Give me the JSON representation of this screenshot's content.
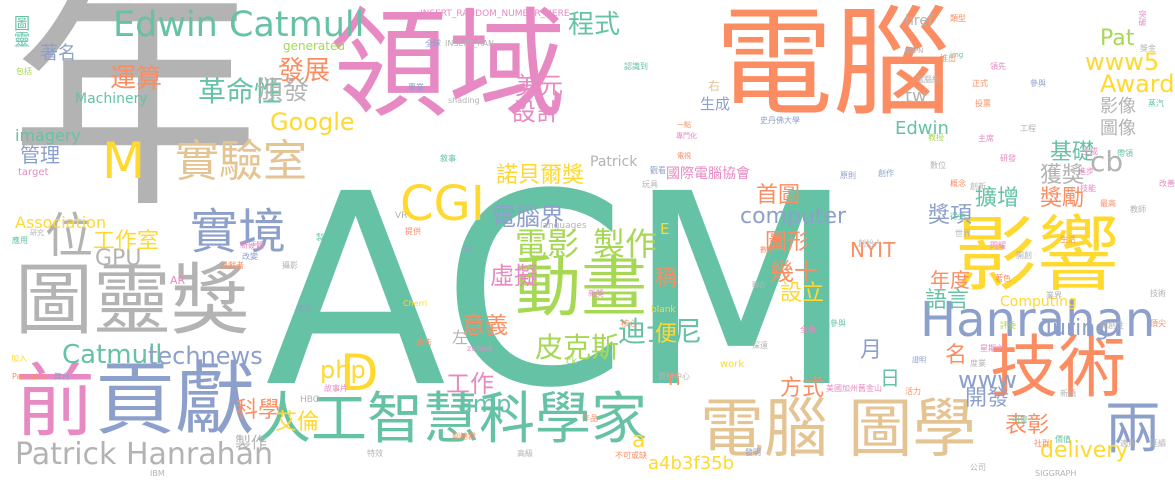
{
  "palette": {
    "green": "#66c2a5",
    "orange": "#fc8d62",
    "blue": "#8da0cb",
    "pink": "#e78ac3",
    "lime": "#a6d854",
    "yellow": "#ffd92f",
    "tan": "#e5c494",
    "gray": "#b3b3b3"
  },
  "words": [
    {
      "text": "年",
      "color": "gray"
    },
    {
      "text": "ACM",
      "color": "green"
    },
    {
      "text": "領域",
      "color": "pink"
    },
    {
      "text": "電腦",
      "color": "orange"
    },
    {
      "text": "圖靈獎",
      "color": "gray"
    },
    {
      "text": "影響",
      "color": "yellow"
    },
    {
      "text": "人工智慧科學家",
      "color": "green"
    },
    {
      "text": "電腦 圖學",
      "color": "tan"
    },
    {
      "text": "前",
      "color": "pink"
    },
    {
      "text": "貢獻",
      "color": "blue"
    },
    {
      "text": "技術",
      "color": "orange"
    },
    {
      "text": "Hanrahan",
      "color": "blue"
    },
    {
      "text": "動畫",
      "color": "lime"
    },
    {
      "text": "Edwin Catmull",
      "color": "green"
    },
    {
      "text": "實驗室",
      "color": "tan"
    },
    {
      "text": "實境",
      "color": "blue"
    },
    {
      "text": "位",
      "color": "gray"
    },
    {
      "text": "M",
      "color": "yellow"
    },
    {
      "text": "CGI",
      "color": "yellow"
    },
    {
      "text": "D",
      "color": "yellow"
    },
    {
      "text": "兩",
      "color": "blue"
    },
    {
      "text": "電影",
      "color": "lime"
    },
    {
      "text": "製作",
      "color": "lime"
    },
    {
      "text": "皮克斯",
      "color": "lime"
    },
    {
      "text": "迪士尼",
      "color": "green"
    },
    {
      "text": "Patrick Hanrahan",
      "color": "gray"
    },
    {
      "text": "革命性",
      "color": "green"
    },
    {
      "text": "頒發",
      "color": "gray"
    },
    {
      "text": "發展",
      "color": "orange"
    },
    {
      "text": "運算",
      "color": "orange"
    },
    {
      "text": "管理",
      "color": "blue"
    },
    {
      "text": "Google",
      "color": "yellow"
    },
    {
      "text": "程式",
      "color": "green"
    },
    {
      "text": "設計",
      "color": "pink"
    },
    {
      "text": "美元",
      "color": "pink"
    },
    {
      "text": "諾貝爾獎",
      "color": "yellow"
    },
    {
      "text": "電腦界",
      "color": "blue"
    },
    {
      "text": "虛擬",
      "color": "pink"
    },
    {
      "text": "意義",
      "color": "orange"
    },
    {
      "text": "Catmull",
      "color": "green"
    },
    {
      "text": "technews",
      "color": "blue"
    },
    {
      "text": "GPU",
      "color": "gray"
    },
    {
      "text": "工作室",
      "color": "yellow"
    },
    {
      "text": "php",
      "color": "yellow"
    },
    {
      "text": "工作",
      "color": "pink"
    },
    {
      "text": "amp",
      "color": "green"
    },
    {
      "text": "科學",
      "color": "orange"
    },
    {
      "text": "艾倫",
      "color": "yellow"
    },
    {
      "text": "製作",
      "color": "gray"
    },
    {
      "text": "設立",
      "color": "yellow"
    },
    {
      "text": "幾十",
      "color": "orange"
    },
    {
      "text": "稱",
      "color": "orange"
    },
    {
      "text": "便",
      "color": "yellow"
    },
    {
      "text": "左",
      "color": "gray"
    },
    {
      "text": "方式",
      "color": "orange"
    },
    {
      "text": "月",
      "color": "blue"
    },
    {
      "text": "日",
      "color": "green"
    },
    {
      "text": "名",
      "color": "orange"
    },
    {
      "text": "www",
      "color": "blue"
    },
    {
      "text": "開發",
      "color": "blue"
    },
    {
      "text": "表彰",
      "color": "orange"
    },
    {
      "text": "delivery",
      "color": "yellow"
    },
    {
      "text": "a4b3f35b",
      "color": "yellow"
    },
    {
      "text": "a",
      "color": "yellow"
    },
    {
      "text": "n",
      "color": "orange"
    },
    {
      "text": "NYIT",
      "color": "orange"
    },
    {
      "text": "首圖",
      "color": "orange"
    },
    {
      "text": "computer",
      "color": "blue"
    },
    {
      "text": "圖形",
      "color": "orange"
    },
    {
      "text": "年度",
      "color": "orange"
    },
    {
      "text": "語言",
      "color": "green"
    },
    {
      "text": "獎項",
      "color": "blue"
    },
    {
      "text": "擴增",
      "color": "green"
    },
    {
      "text": "獎勵",
      "color": "orange"
    },
    {
      "text": "獲獎",
      "color": "gray"
    },
    {
      "text": "基礎",
      "color": "green"
    },
    {
      "text": "cb",
      "color": "gray"
    },
    {
      "text": "圖像",
      "color": "gray"
    },
    {
      "text": "影像",
      "color": "gray"
    },
    {
      "text": "Award",
      "color": "yellow"
    },
    {
      "text": "www5",
      "color": "yellow"
    },
    {
      "text": "Pat",
      "color": "lime"
    },
    {
      "text": "Turing",
      "color": "blue"
    },
    {
      "text": "Computing",
      "color": "yellow"
    },
    {
      "text": "tw",
      "color": "gray"
    },
    {
      "text": "Edwin",
      "color": "green"
    },
    {
      "text": "href",
      "color": "gray"
    },
    {
      "text": "生成",
      "color": "blue"
    },
    {
      "text": "右",
      "color": "tan"
    },
    {
      "text": "國際電腦協會",
      "color": "pink"
    },
    {
      "text": "Patrick",
      "color": "gray"
    },
    {
      "text": "Association",
      "color": "yellow"
    },
    {
      "text": "imagery",
      "color": "green"
    },
    {
      "text": "Machinery",
      "color": "green"
    },
    {
      "text": "generated",
      "color": "lime"
    },
    {
      "text": "圖靈",
      "color": "green"
    },
    {
      "text": "著名",
      "color": "blue"
    },
    {
      "text": "E",
      "color": "yellow"
    },
    {
      "text": "INSERT_RANDOM_NUMBER_HERE",
      "color": "pink"
    },
    {
      "text": "INSERT_RAN",
      "color": "gray"
    },
    {
      "text": "shading",
      "color": "gray"
    },
    {
      "text": "languages",
      "color": "gray"
    },
    {
      "text": "target",
      "color": "pink"
    },
    {
      "text": "VR",
      "color": "gray"
    },
    {
      "text": "AR",
      "color": "pink"
    },
    {
      "text": "Ed",
      "color": "blue"
    },
    {
      "text": "ck",
      "color": "lime"
    },
    {
      "text": "work",
      "color": "yellow"
    },
    {
      "text": "blank",
      "color": "yellow"
    },
    {
      "text": "HBO",
      "color": "gray"
    },
    {
      "text": "IBM",
      "color": "gray"
    },
    {
      "text": "SIGGRAPH",
      "color": "gray"
    },
    {
      "text": "ESPN",
      "color": "gray"
    },
    {
      "text": "img",
      "color": "green"
    },
    {
      "text": "Pancake",
      "color": "orange"
    },
    {
      "text": "Cherri",
      "color": "yellow"
    },
    {
      "text": "zoned",
      "color": "pink"
    },
    {
      "text": "史丹佛大學",
      "color": "blue"
    },
    {
      "text": "美國加州舊金山",
      "color": "pink"
    },
    {
      "text": "資料中心",
      "color": "gray"
    },
    {
      "text": "全球",
      "color": "blue"
    },
    {
      "text": "專業",
      "color": "blue"
    },
    {
      "text": "認識到",
      "color": "green"
    },
    {
      "text": "一點",
      "color": "orange"
    },
    {
      "text": "專門化",
      "color": "pink"
    },
    {
      "text": "數位",
      "color": "gray"
    },
    {
      "text": "創新",
      "color": "gray"
    },
    {
      "text": "貢獻者",
      "color": "orange"
    },
    {
      "text": "新獎",
      "color": "pink"
    },
    {
      "text": "深遠",
      "color": "gray"
    },
    {
      "text": "特效",
      "color": "gray"
    },
    {
      "text": "不可或缺",
      "color": "orange"
    },
    {
      "text": "高級",
      "color": "gray"
    },
    {
      "text": "副總裁",
      "color": "orange"
    },
    {
      "text": "作品",
      "color": "orange"
    },
    {
      "text": "故事片",
      "color": "pink"
    },
    {
      "text": "廣告",
      "color": "orange"
    },
    {
      "text": "核心",
      "color": "orange"
    },
    {
      "text": "玩具",
      "color": "gray"
    },
    {
      "text": "觀看",
      "color": "blue"
    },
    {
      "text": "數學",
      "color": "orange"
    },
    {
      "text": "聯合",
      "color": "gray"
    },
    {
      "text": "電視",
      "color": "orange"
    },
    {
      "text": "加入",
      "color": "yellow"
    },
    {
      "text": "舞台",
      "color": "blue"
    },
    {
      "text": "價值",
      "color": "green"
    },
    {
      "text": "新穎",
      "color": "gray"
    },
    {
      "text": "公司",
      "color": "gray"
    },
    {
      "text": "社群",
      "color": "orange"
    },
    {
      "text": "引擎",
      "color": "green"
    },
    {
      "text": "參與",
      "color": "green"
    },
    {
      "text": "活力",
      "color": "orange"
    },
    {
      "text": "星期六",
      "color": "pink"
    },
    {
      "text": "包括",
      "color": "lime"
    },
    {
      "text": "電腦網",
      "color": "gray"
    },
    {
      "text": "度業",
      "color": "gray"
    },
    {
      "text": "敘事",
      "color": "green"
    },
    {
      "text": "提供",
      "color": "orange"
    },
    {
      "text": "中",
      "color": "yellow"
    },
    {
      "text": "生成",
      "color": "pink"
    },
    {
      "text": "應用",
      "color": "green"
    },
    {
      "text": "研究",
      "color": "gray"
    },
    {
      "text": "證明",
      "color": "blue"
    },
    {
      "text": "發明",
      "color": "blue"
    },
    {
      "text": "進步",
      "color": "pink"
    },
    {
      "text": "領先",
      "color": "pink"
    },
    {
      "text": "概念",
      "color": "orange"
    },
    {
      "text": "攝影",
      "color": "gray"
    },
    {
      "text": "新硬體",
      "color": "pink"
    },
    {
      "text": "製造",
      "color": "green"
    },
    {
      "text": "審查",
      "color": "blue"
    },
    {
      "text": "改變",
      "color": "blue"
    },
    {
      "text": "創始人",
      "color": "gray"
    },
    {
      "text": "開創",
      "color": "gray"
    },
    {
      "text": "類型",
      "color": "orange"
    },
    {
      "text": "突破",
      "color": "pink"
    },
    {
      "text": "帶領",
      "color": "green"
    },
    {
      "text": "技能",
      "color": "pink"
    },
    {
      "text": "全新",
      "color": "pink"
    },
    {
      "text": "得主",
      "color": "green"
    },
    {
      "text": "教授",
      "color": "lime"
    },
    {
      "text": "世界",
      "color": "gray"
    },
    {
      "text": "原則",
      "color": "blue"
    },
    {
      "text": "創作",
      "color": "blue"
    },
    {
      "text": "獎金",
      "color": "gray"
    },
    {
      "text": "推出",
      "color": "orange"
    },
    {
      "text": "正式",
      "color": "orange"
    },
    {
      "text": "參與",
      "color": "blue"
    },
    {
      "text": "最高",
      "color": "orange"
    },
    {
      "text": "蒸汽",
      "color": "green"
    },
    {
      "text": "延續",
      "color": "gray"
    },
    {
      "text": "適用",
      "color": "gray"
    },
    {
      "text": "著色",
      "color": "orange"
    },
    {
      "text": "閃耀",
      "color": "pink"
    },
    {
      "text": "改善",
      "color": "pink"
    },
    {
      "text": "頂尖",
      "color": "orange"
    },
    {
      "text": "技術",
      "color": "gray"
    },
    {
      "text": "評委",
      "color": "lime"
    },
    {
      "text": "開創性",
      "color": "gray"
    },
    {
      "text": "業界",
      "color": "gray"
    },
    {
      "text": "工程",
      "color": "gray"
    },
    {
      "text": "生活",
      "color": "orange"
    },
    {
      "text": "教師",
      "color": "gray"
    },
    {
      "text": "投票",
      "color": "orange"
    },
    {
      "text": "主席",
      "color": "pink"
    },
    {
      "text": "研發",
      "color": "pink"
    },
    {
      "text": "期間",
      "color": "orange"
    },
    {
      "text": "創立",
      "color": "orange"
    },
    {
      "text": "最新",
      "color": "orange"
    },
    {
      "text": "數位化",
      "color": "orange"
    },
    {
      "text": "數據",
      "color": "gray"
    },
    {
      "text": "頂級",
      "color": "green"
    },
    {
      "text": "推動",
      "color": "gray"
    },
    {
      "text": "重大",
      "color": "gray"
    },
    {
      "text": "結合",
      "color": "gray"
    },
    {
      "text": "全面",
      "color": "gray"
    }
  ]
}
